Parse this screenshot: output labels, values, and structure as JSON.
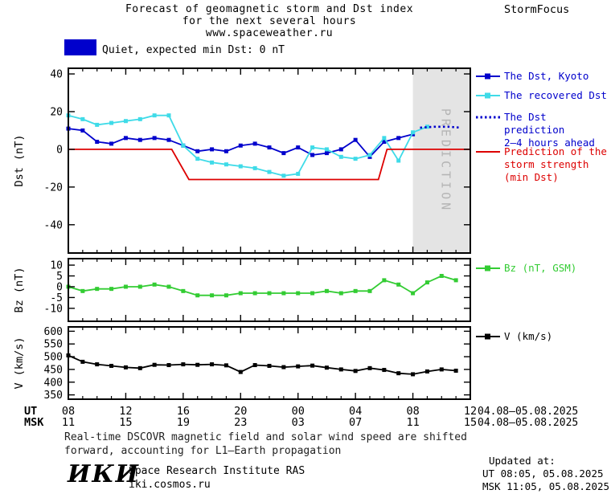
{
  "header": {
    "title_lines": [
      "Forecast of geomagnetic storm and Dst index",
      "for the next several hours",
      "www.spaceweather.ru"
    ],
    "brand": "StormFocus"
  },
  "status": {
    "swatch_color": "#0000cc",
    "text": "Quiet, expected min Dst: 0 nT"
  },
  "legend": {
    "dst_kyoto": {
      "label": "The Dst, Kyoto",
      "color": "#0000cc"
    },
    "recovered": {
      "label": "The recovered Dst",
      "color": "#0000cc",
      "icon_color": "#3fdbe8"
    },
    "prediction": {
      "lines": [
        "The Dst prediction",
        "2–4 hours ahead"
      ],
      "color": "#0000cc"
    },
    "storm_strength": {
      "lines": [
        "Prediction of the",
        "storm strength",
        "(min Dst)"
      ],
      "color": "#dd0000"
    },
    "bz": {
      "label": "Bz (nT, GSM)",
      "color": "#33cc33"
    },
    "v": {
      "label": "V (km/s)",
      "color": "#000000"
    }
  },
  "axis": {
    "ut_label": "UT",
    "msk_label": "MSK",
    "ut_ticks": [
      "08",
      "12",
      "16",
      "20",
      "00",
      "04",
      "08",
      "12"
    ],
    "msk_ticks": [
      "11",
      "15",
      "19",
      "23",
      "03",
      "07",
      "11",
      "15"
    ],
    "date_range_ut": "04.08–05.08.2025",
    "date_range_msk": "04.08–05.08.2025"
  },
  "footer": {
    "note_lines": [
      "Real-time DSCOVR magnetic field and solar wind speed are shifted",
      "forward, accounting for L1–Earth propagation"
    ],
    "logo_text": "ИКИ",
    "institute": "Space Research Institute RAS",
    "website": "iki.cosmos.ru",
    "updated_label": "Updated at:",
    "updated_ut": "UT  08:05, 05.08.2025",
    "updated_msk": "MSK 11:05, 05.08.2025"
  },
  "chart_data": [
    {
      "type": "line",
      "panel": "dst",
      "ylabel": "Dst (nT)",
      "ylim": [
        -55,
        43
      ],
      "yticks": [
        -40,
        -20,
        0,
        20,
        40
      ],
      "xlim": [
        8,
        36
      ],
      "xticks": [
        8,
        12,
        16,
        20,
        24,
        28,
        32,
        36
      ],
      "band": {
        "start": 32,
        "end": 36,
        "label": "PREDICTION"
      },
      "series": [
        {
          "name": "The Dst, Kyoto",
          "color": "#0000cc",
          "style": "solid",
          "marker": true,
          "x": [
            8,
            9,
            10,
            11,
            12,
            13,
            14,
            15,
            16,
            17,
            18,
            19,
            20,
            21,
            22,
            23,
            24,
            25,
            26,
            27,
            28,
            29,
            30,
            31,
            32
          ],
          "y": [
            11,
            10,
            4,
            3,
            6,
            5,
            6,
            5,
            2,
            -1,
            0,
            -1,
            2,
            3,
            1,
            -2,
            1,
            -3,
            -2,
            0,
            5,
            -4,
            4,
            6,
            8
          ]
        },
        {
          "name": "The recovered Dst",
          "color": "#3fdbe8",
          "style": "solid",
          "marker": true,
          "x": [
            8,
            9,
            10,
            11,
            12,
            13,
            14,
            15,
            16,
            17,
            18,
            19,
            20,
            21,
            22,
            23,
            24,
            25,
            26,
            27,
            28,
            29,
            30,
            31,
            32,
            33
          ],
          "y": [
            18,
            16,
            13,
            14,
            15,
            16,
            18,
            18,
            2,
            -5,
            -7,
            -8,
            -9,
            -10,
            -12,
            -14,
            -13,
            1,
            0,
            -4,
            -5,
            -3,
            6,
            -6,
            9,
            12
          ]
        },
        {
          "name": "The Dst prediction 2–4 hours ahead",
          "color": "#0000cc",
          "style": "dotted",
          "marker": false,
          "x": [
            32.5,
            33.5,
            34.5,
            35.3
          ],
          "y": [
            11.5,
            12,
            12,
            11.5
          ]
        },
        {
          "name": "Prediction of the storm strength (min Dst)",
          "color": "#dd0000",
          "style": "solid",
          "marker": false,
          "x": [
            8,
            15.2,
            16.4,
            29.6,
            30.2,
            36
          ],
          "y": [
            0,
            0,
            -16,
            -16,
            0,
            0
          ]
        }
      ]
    },
    {
      "type": "line",
      "panel": "bz",
      "ylabel": "Bz (nT)",
      "ylim": [
        -16,
        13
      ],
      "yticks": [
        10,
        5,
        0,
        -5,
        -10
      ],
      "xlim": [
        8,
        36
      ],
      "xticks": [
        8,
        12,
        16,
        20,
        24,
        28,
        32,
        36
      ],
      "series": [
        {
          "name": "Bz (nT, GSM)",
          "color": "#33cc33",
          "style": "solid",
          "marker": true,
          "x": [
            8,
            9,
            10,
            11,
            12,
            13,
            14,
            15,
            16,
            17,
            18,
            19,
            20,
            21,
            22,
            23,
            24,
            25,
            26,
            27,
            28,
            29,
            30,
            31,
            32,
            33,
            34,
            35
          ],
          "y": [
            0,
            -2,
            -1,
            -1,
            0,
            0,
            1,
            0,
            -2,
            -4,
            -4,
            -4,
            -3,
            -3,
            -3,
            -3,
            -3,
            -3,
            -2,
            -3,
            -2,
            -2,
            3,
            1,
            -3,
            2,
            5,
            3
          ]
        }
      ]
    },
    {
      "type": "line",
      "panel": "v",
      "ylabel": "V (km/s)",
      "ylim": [
        333,
        617
      ],
      "yticks": [
        350,
        400,
        450,
        500,
        550,
        600
      ],
      "xlim": [
        8,
        36
      ],
      "xticks": [
        8,
        12,
        16,
        20,
        24,
        28,
        32,
        36
      ],
      "series": [
        {
          "name": "V (km/s)",
          "color": "#000000",
          "style": "solid",
          "marker": true,
          "x": [
            8,
            9,
            10,
            11,
            12,
            13,
            14,
            15,
            16,
            17,
            18,
            19,
            20,
            21,
            22,
            23,
            24,
            25,
            26,
            27,
            28,
            29,
            30,
            31,
            32,
            33,
            34,
            35
          ],
          "y": [
            505,
            480,
            470,
            464,
            458,
            455,
            468,
            467,
            470,
            468,
            470,
            466,
            440,
            467,
            464,
            459,
            462,
            465,
            457,
            450,
            444,
            455,
            448,
            435,
            431,
            442,
            450,
            445
          ]
        }
      ]
    }
  ]
}
